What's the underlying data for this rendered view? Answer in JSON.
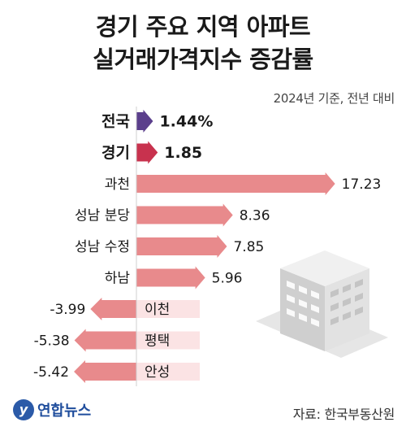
{
  "title_line1": "경기 주요 지역 아파트",
  "title_line2": "실거래가격지수 증감률",
  "subtitle": "2024년 기준, 전년 대비",
  "source": "자료: 한국부동산원",
  "logo": {
    "mark": "y",
    "text": "연합뉴스"
  },
  "colors": {
    "national": "#5b3f8c",
    "gyeonggi": "#c8324e",
    "regions": "#e88a8c",
    "label_bg": "#fbe3e4",
    "building": "#d9d9d9"
  },
  "chart_data": {
    "type": "bar",
    "orientation": "horizontal",
    "categories": [
      "전국",
      "경기",
      "과천",
      "성남 분당",
      "성남 수정",
      "하남",
      "이천",
      "평택",
      "안성"
    ],
    "values": [
      1.44,
      1.85,
      17.23,
      8.36,
      7.85,
      5.96,
      -3.99,
      -5.38,
      -5.42
    ],
    "value_labels": [
      "1.44%",
      "1.85",
      "17.23",
      "8.36",
      "7.85",
      "5.96",
      "-3.99",
      "-5.38",
      "-5.42"
    ],
    "highlight": [
      "전국",
      "경기"
    ],
    "xlim": [
      -6,
      18
    ]
  }
}
